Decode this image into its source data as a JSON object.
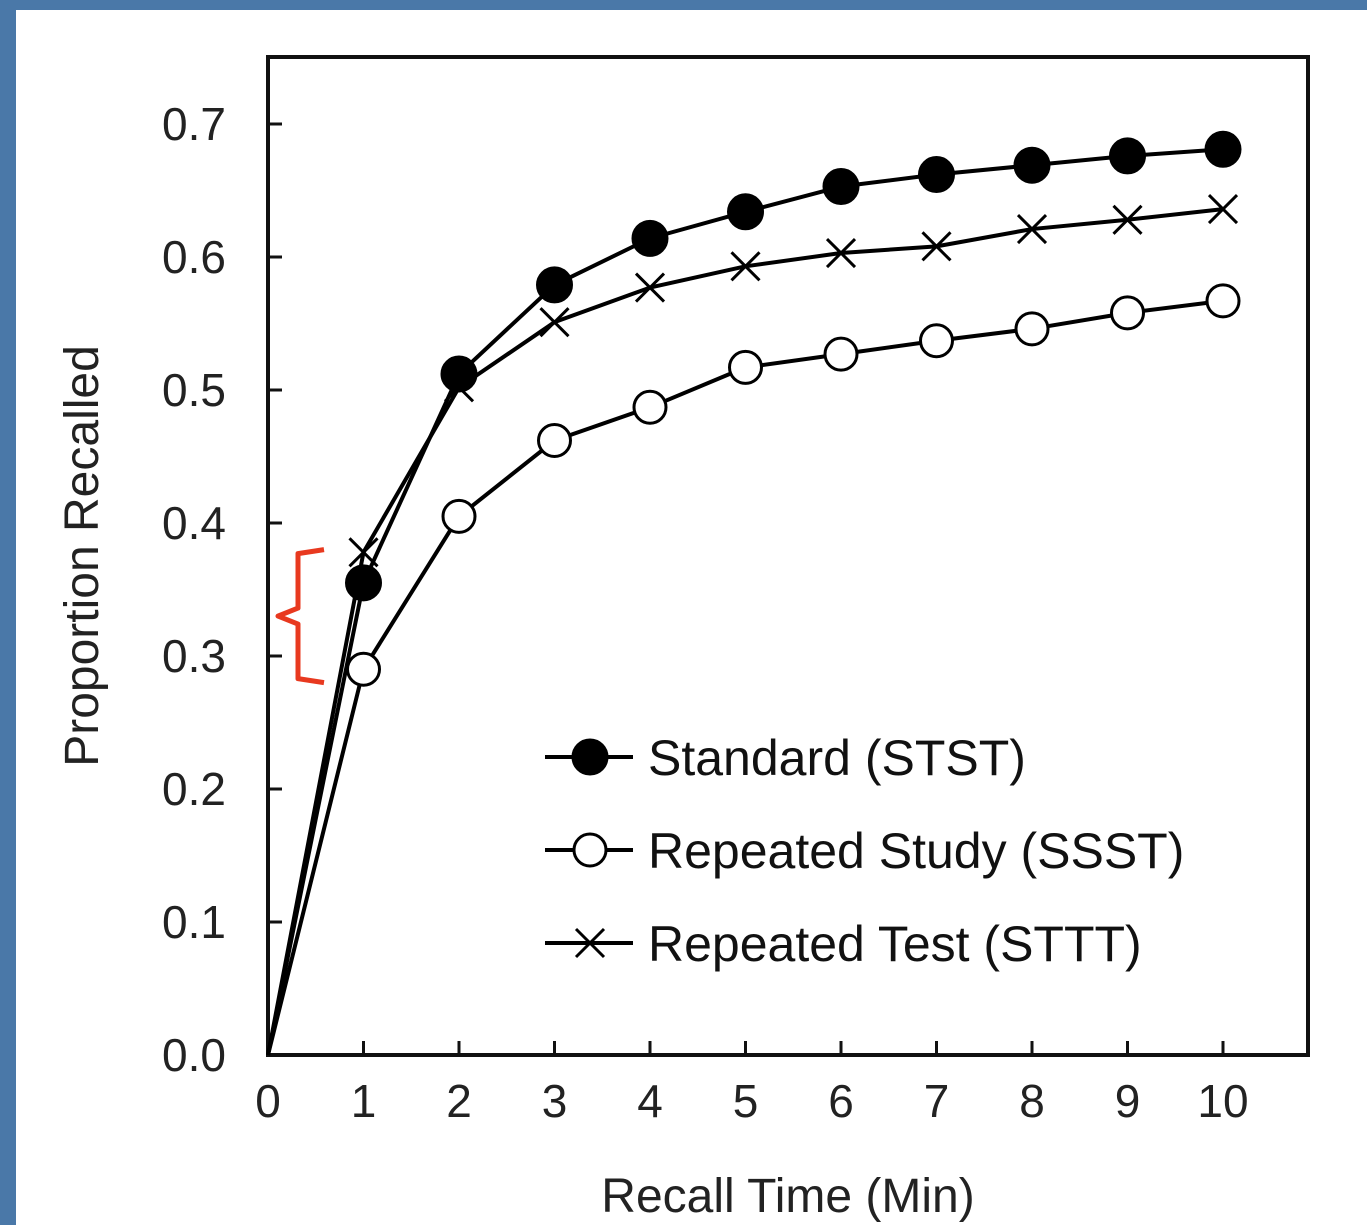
{
  "chart_data": {
    "type": "line",
    "xlabel": "Recall Time (Min)",
    "ylabel": "Proportion Recalled",
    "xlim": [
      0,
      10.9
    ],
    "ylim": [
      0,
      0.75
    ],
    "x_ticks": [
      "0",
      "1",
      "2",
      "3",
      "4",
      "5",
      "6",
      "7",
      "8",
      "9",
      "10"
    ],
    "y_ticks": [
      "0.0",
      "0.1",
      "0.2",
      "0.3",
      "0.4",
      "0.5",
      "0.6",
      "0.7"
    ],
    "grid": false,
    "legend_position": "bottom-right",
    "x": [
      0,
      1,
      2,
      3,
      4,
      5,
      6,
      7,
      8,
      9,
      10
    ],
    "series": [
      {
        "name": "Standard (STST)",
        "marker": "filled-circle",
        "values": [
          0.0,
          0.355,
          0.512,
          0.579,
          0.614,
          0.634,
          0.653,
          0.662,
          0.669,
          0.676,
          0.681
        ]
      },
      {
        "name": "Repeated Study (SSST)",
        "marker": "open-circle",
        "values": [
          0.0,
          0.29,
          0.405,
          0.462,
          0.487,
          0.517,
          0.527,
          0.537,
          0.546,
          0.558,
          0.567
        ]
      },
      {
        "name": "Repeated Test (STTT)",
        "marker": "x",
        "values": [
          0.0,
          0.378,
          0.502,
          0.551,
          0.577,
          0.593,
          0.603,
          0.608,
          0.621,
          0.628,
          0.636
        ]
      }
    ],
    "annotation": {
      "type": "bracket",
      "color": "#e8391f",
      "y_range": [
        0.28,
        0.38
      ]
    },
    "colors": {
      "axis": "#111111",
      "series": "#000000",
      "frame_border": "#4a78a8"
    }
  }
}
